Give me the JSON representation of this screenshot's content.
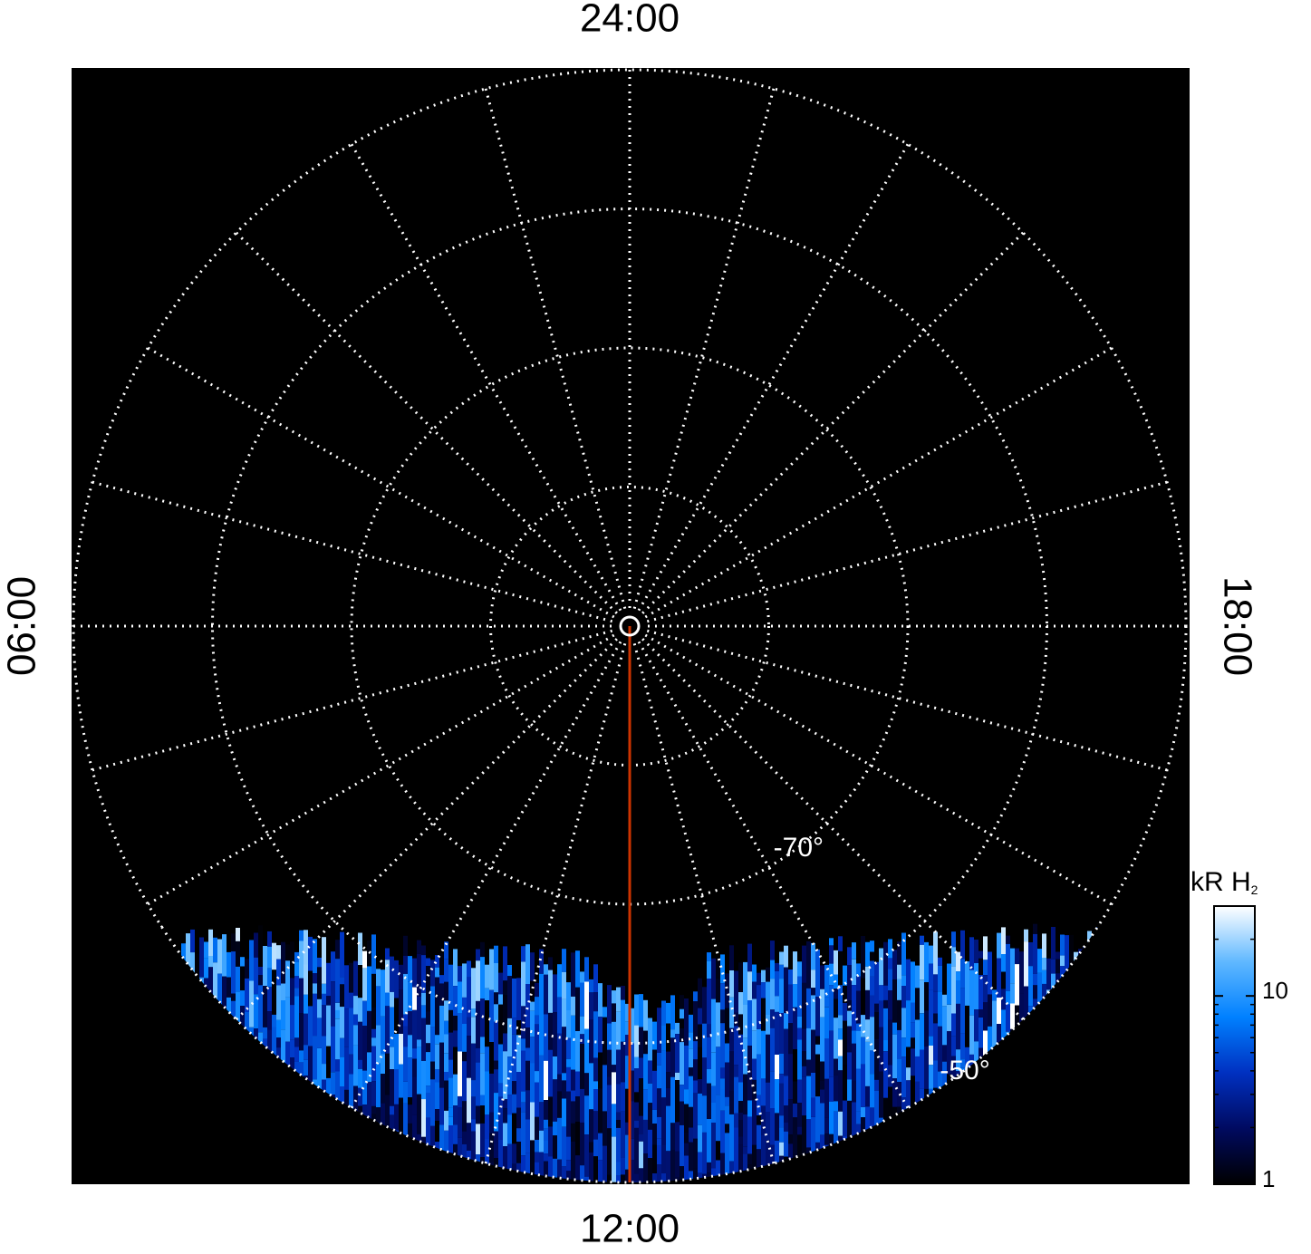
{
  "chart_data": {
    "type": "polar",
    "hticks": [
      0,
      1,
      2,
      3,
      4,
      5,
      6,
      7,
      8,
      9,
      10,
      11,
      12,
      13,
      14,
      15,
      16,
      17,
      18,
      19,
      20,
      21,
      22,
      23
    ],
    "time_labels": [
      {
        "value": 0,
        "label": "24:00"
      },
      {
        "value": 6,
        "label": "06:00"
      },
      {
        "value": 12,
        "label": "12:00"
      },
      {
        "value": 18,
        "label": "18:00"
      }
    ],
    "rlim": [
      -90,
      -50
    ],
    "rticks": [
      -80,
      -70,
      -60,
      -50
    ],
    "lat_labels": [
      {
        "value": -70,
        "label": "-70°"
      },
      {
        "value": -50,
        "label": "-50°"
      }
    ],
    "highlight_hour": 12,
    "highlight_color": "#cc3300",
    "colorbar": {
      "title": "kR H",
      "title_sub": "2",
      "lim": [
        1,
        30
      ],
      "log": true,
      "ticks": [
        1,
        10
      ],
      "minor_ticks": [
        2,
        3,
        4,
        5,
        6,
        7,
        8,
        9,
        20,
        30
      ],
      "colors": [
        "#000000",
        "#000a60",
        "#0030c0",
        "#0080ff",
        "#60b8ff",
        "#ffffff"
      ]
    }
  }
}
